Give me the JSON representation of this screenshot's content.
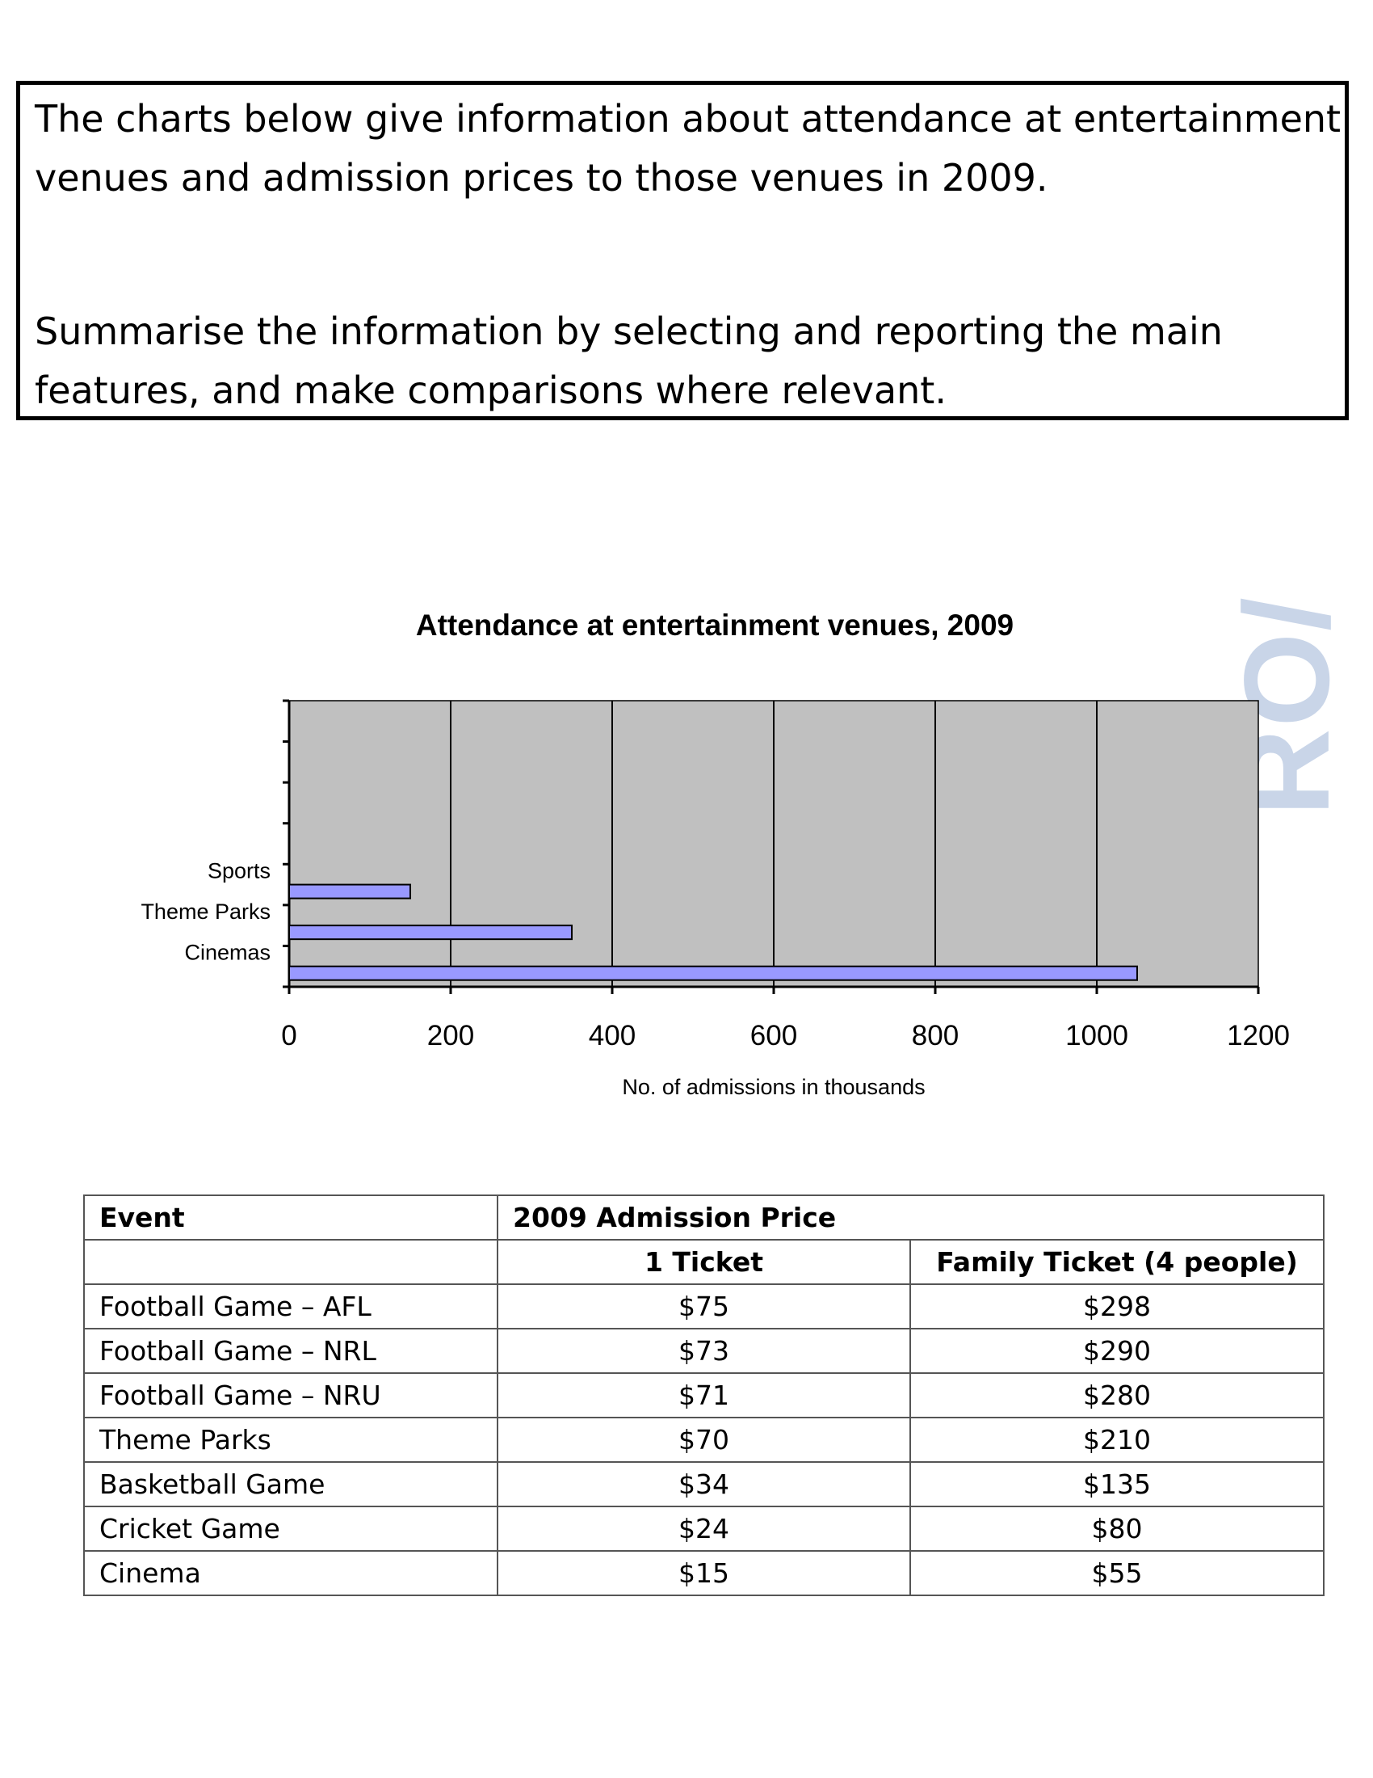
{
  "task": {
    "line1": "The charts below give information about attendance at entertainment",
    "line2": "venues and admission prices to those venues in 2009.",
    "line3": "Summarise the information by selecting and reporting the main",
    "line4": "features, and make comparisons where relevant."
  },
  "watermark": "RO/",
  "chart_data": {
    "type": "bar",
    "orientation": "horizontal",
    "title": "Attendance at entertainment venues, 2009",
    "xlabel": "No. of admissions in thousands",
    "categories": [
      "Sports",
      "Theme Parks",
      "Cinemas"
    ],
    "values": [
      150,
      350,
      1050
    ],
    "xlim": [
      0,
      1200
    ],
    "xticks": [
      "0",
      "200",
      "400",
      "600",
      "800",
      "1000",
      "1200"
    ],
    "grid": true,
    "colors": {
      "bar": "#9999ff",
      "plot_bg": "#c0c0c0"
    }
  },
  "table": {
    "header_event": "Event",
    "header_price": "2009 Admission Price",
    "sub_one": "1 Ticket",
    "sub_family": "Family Ticket (4 people)",
    "rows": [
      {
        "event": "Football Game – AFL",
        "one": "$75",
        "family": "$298"
      },
      {
        "event": "Football Game – NRL",
        "one": "$73",
        "family": "$290"
      },
      {
        "event": "Football Game – NRU",
        "one": "$71",
        "family": "$280"
      },
      {
        "event": "Theme Parks",
        "one": "$70",
        "family": "$210"
      },
      {
        "event": "Basketball Game",
        "one": "$34",
        "family": "$135"
      },
      {
        "event": "Cricket Game",
        "one": "$24",
        "family": "$80"
      },
      {
        "event": "Cinema",
        "one": "$15",
        "family": "$55"
      }
    ]
  }
}
